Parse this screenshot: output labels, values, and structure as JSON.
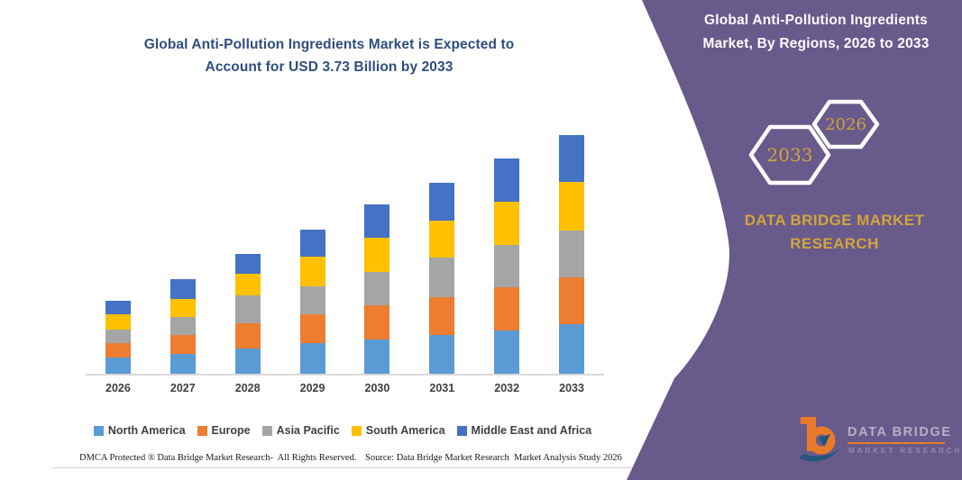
{
  "chart_data": {
    "type": "bar",
    "stacked": true,
    "title": "Global Anti-Pollution Ingredients Market is Expected to Account for USD 3.73 Billion by 2033",
    "title_lines": [
      "Global Anti-Pollution Ingredients Market is Expected to",
      "Account for USD 3.73 Billion by 2033"
    ],
    "unit": "USD Billion",
    "categories": [
      "2026",
      "2027",
      "2028",
      "2029",
      "2030",
      "2031",
      "2032",
      "2033"
    ],
    "series": [
      {
        "name": "North America",
        "color": "#5b9bd5",
        "values": [
          0.25,
          0.31,
          0.39,
          0.48,
          0.54,
          0.61,
          0.68,
          0.77
        ]
      },
      {
        "name": "Europe",
        "color": "#ed7d31",
        "values": [
          0.23,
          0.3,
          0.4,
          0.45,
          0.53,
          0.59,
          0.67,
          0.73
        ]
      },
      {
        "name": "Asia Pacific",
        "color": "#a5a5a5",
        "values": [
          0.21,
          0.28,
          0.44,
          0.43,
          0.52,
          0.62,
          0.67,
          0.74
        ]
      },
      {
        "name": "South America",
        "color": "#ffc000",
        "values": [
          0.24,
          0.28,
          0.33,
          0.47,
          0.54,
          0.58,
          0.67,
          0.76
        ]
      },
      {
        "name": "Middle East and Africa",
        "color": "#4472c4",
        "values": [
          0.21,
          0.31,
          0.31,
          0.42,
          0.51,
          0.59,
          0.68,
          0.73
        ]
      }
    ],
    "totals": [
      1.14,
      1.48,
      1.87,
      2.25,
      2.64,
      2.99,
      3.37,
      3.73
    ],
    "ylim": [
      0,
      3.73
    ],
    "y_axis_visible": false,
    "grid": false,
    "legend_position": "bottom"
  },
  "panel": {
    "bg_color": "#685a8b",
    "accent_gold": "#d2a43c",
    "title_line1": "Global Anti-Pollution Ingredients",
    "title_line2": "Market, By Regions, 2026 to 2033",
    "hexagon_back_label": "2033",
    "hexagon_front_label": "2026",
    "brand_line1": "DATA BRIDGE MARKET",
    "brand_line2": "RESEARCH"
  },
  "logo": {
    "name": "DATA BRIDGE",
    "subtitle": "MARKET RESEARCH"
  },
  "footer": {
    "dmca": "DMCA Protected ® Data Bridge Market Research-  All Rights Reserved.",
    "source": "Source: Data Bridge Market Research  Market Analysis Study 2026"
  }
}
